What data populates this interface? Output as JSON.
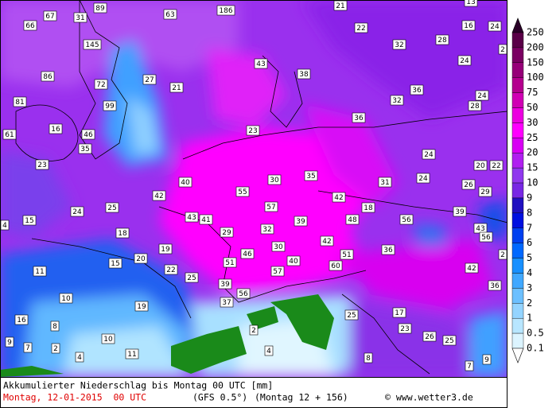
{
  "map": {
    "labels": [
      67,
      31,
      89,
      66,
      63,
      186,
      21,
      13,
      22,
      16,
      24,
      145,
      28,
      32,
      2,
      43,
      86,
      72,
      27,
      21,
      38,
      24,
      36,
      24,
      81,
      99,
      32,
      28,
      36,
      16,
      61,
      46,
      23,
      35,
      24,
      23,
      20,
      22,
      40,
      30,
      35,
      31,
      24,
      26,
      29,
      42,
      55,
      42,
      18,
      39,
      15,
      24,
      25,
      43,
      41,
      57,
      39,
      48,
      56,
      43,
      4,
      18,
      29,
      32,
      42,
      56,
      30,
      36,
      19,
      20,
      15,
      46,
      51,
      2,
      40,
      51,
      60,
      42,
      11,
      22,
      25,
      57,
      39,
      56,
      36,
      10,
      19,
      37,
      25,
      17,
      16,
      8,
      2,
      23,
      26,
      25,
      9,
      7,
      10,
      2,
      4,
      11,
      4,
      8,
      7,
      9
    ]
  },
  "colorbar": {
    "levels": [
      250,
      200,
      150,
      100,
      75,
      50,
      30,
      25,
      20,
      15,
      10,
      9,
      8,
      7,
      6,
      5,
      4,
      3,
      2,
      1,
      0.5,
      0.1
    ],
    "colors": [
      "#2a0028",
      "#5a0048",
      "#7a0062",
      "#960078",
      "#b4008e",
      "#d000b4",
      "#ec00e0",
      "#ff00ff",
      "#d800f4",
      "#b020f0",
      "#9038ee",
      "#7828e4",
      "#2010c0",
      "#0010e0",
      "#0040f0",
      "#0068ff",
      "#1890ff",
      "#40a8ff",
      "#6cc0ff",
      "#94d4ff",
      "#b8e6ff",
      "#dcf4ff",
      "#ffffff"
    ]
  },
  "footer": {
    "title": "Akkumulierter Niederschlag bis Montag 00 UTC [mm]",
    "date": "Montag, 12-01-2015  00 UTC",
    "model": "(GFS 0.5°)",
    "run": "(Montag 12 + 156)",
    "source": "© www.wetter3.de"
  }
}
